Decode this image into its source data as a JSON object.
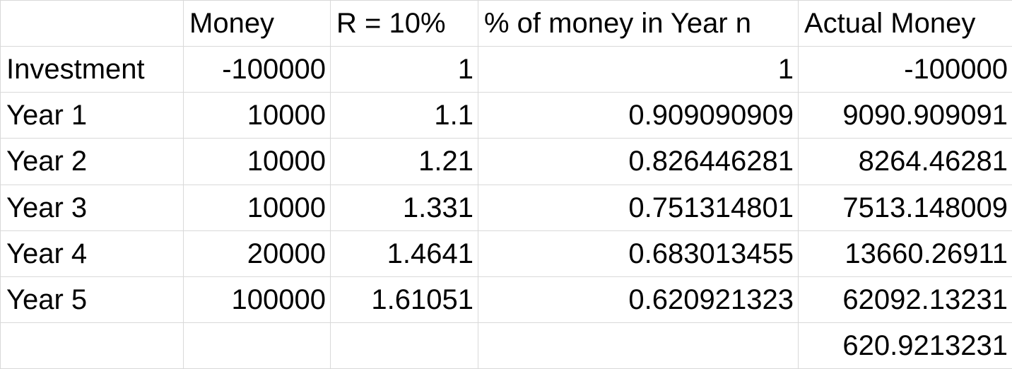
{
  "headers": [
    "",
    "Money",
    "R = 10%",
    "% of money in Year n",
    "Actual Money"
  ],
  "rows": [
    [
      "Investment",
      "-100000",
      "1",
      "1",
      "-100000"
    ],
    [
      "Year 1",
      "10000",
      "1.1",
      "0.909090909",
      "9090.909091"
    ],
    [
      "Year 2",
      "10000",
      "1.21",
      "0.826446281",
      "8264.46281"
    ],
    [
      "Year 3",
      "10000",
      "1.331",
      "0.751314801",
      "7513.148009"
    ],
    [
      "Year 4",
      "20000",
      "1.4641",
      "0.683013455",
      "13660.26911"
    ],
    [
      "Year 5",
      "100000",
      "1.61051",
      "0.620921323",
      "62092.13231"
    ],
    [
      "",
      "",
      "",
      "",
      "620.9213231"
    ]
  ]
}
